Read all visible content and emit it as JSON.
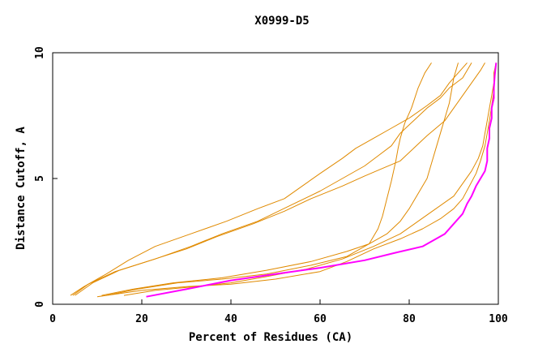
{
  "chart_data": {
    "type": "line",
    "title": "X0999-D5",
    "xlabel": "Percent of Residues (CA)",
    "ylabel": "Distance Cutoff, A",
    "xlim": [
      0,
      100
    ],
    "ylim": [
      0,
      10
    ],
    "x_ticks": [
      0,
      20,
      40,
      60,
      80,
      100
    ],
    "y_ticks": [
      0,
      5,
      10
    ],
    "grid": false,
    "legend": "none",
    "colors": {
      "series": "#e08a00",
      "highlight": "#ff00ff",
      "axes": "#000000"
    },
    "series": [
      {
        "highlight": false,
        "points": [
          [
            4.5,
            0.35
          ],
          [
            8,
            0.8
          ],
          [
            14,
            1.3
          ],
          [
            22,
            1.75
          ],
          [
            30,
            2.2
          ],
          [
            37,
            2.7
          ],
          [
            45,
            3.2
          ],
          [
            52,
            3.7
          ],
          [
            58,
            4.2
          ],
          [
            65,
            4.7
          ],
          [
            70,
            5.1
          ],
          [
            74,
            5.4
          ],
          [
            78,
            5.7
          ],
          [
            81,
            6.2
          ],
          [
            84,
            6.7
          ],
          [
            88,
            7.3
          ],
          [
            90,
            7.8
          ],
          [
            92,
            8.3
          ],
          [
            94,
            8.8
          ],
          [
            96,
            9.3
          ],
          [
            97,
            9.6
          ]
        ]
      },
      {
        "highlight": false,
        "points": [
          [
            5,
            0.35
          ],
          [
            9,
            0.85
          ],
          [
            15,
            1.35
          ],
          [
            23,
            1.8
          ],
          [
            31,
            2.3
          ],
          [
            38,
            2.8
          ],
          [
            46,
            3.3
          ],
          [
            53,
            3.9
          ],
          [
            60,
            4.5
          ],
          [
            65,
            5.0
          ],
          [
            70,
            5.5
          ],
          [
            73,
            5.9
          ],
          [
            76,
            6.3
          ],
          [
            78,
            6.8
          ],
          [
            81,
            7.3
          ],
          [
            84,
            7.8
          ],
          [
            87,
            8.2
          ],
          [
            89,
            8.6
          ],
          [
            92,
            9.0
          ],
          [
            94,
            9.6
          ]
        ]
      },
      {
        "highlight": false,
        "points": [
          [
            4,
            0.35
          ],
          [
            7,
            0.7
          ],
          [
            12,
            1.2
          ],
          [
            17,
            1.75
          ],
          [
            23,
            2.3
          ],
          [
            31,
            2.8
          ],
          [
            39,
            3.3
          ],
          [
            46,
            3.8
          ],
          [
            52,
            4.2
          ],
          [
            56,
            4.7
          ],
          [
            60,
            5.2
          ],
          [
            65,
            5.8
          ],
          [
            68,
            6.2
          ],
          [
            72,
            6.6
          ],
          [
            76,
            7.0
          ],
          [
            80,
            7.4
          ],
          [
            84,
            7.9
          ],
          [
            87,
            8.3
          ],
          [
            89,
            8.8
          ],
          [
            91,
            9.2
          ],
          [
            93,
            9.6
          ]
        ]
      },
      {
        "highlight": false,
        "points": [
          [
            11,
            0.35
          ],
          [
            18,
            0.6
          ],
          [
            27,
            0.85
          ],
          [
            38,
            1.05
          ],
          [
            48,
            1.35
          ],
          [
            58,
            1.7
          ],
          [
            66,
            2.1
          ],
          [
            71,
            2.4
          ],
          [
            73,
            3.0
          ],
          [
            74,
            3.5
          ],
          [
            75,
            4.2
          ],
          [
            76,
            4.9
          ],
          [
            77,
            5.7
          ],
          [
            77.5,
            6.2
          ],
          [
            78,
            6.6
          ],
          [
            79,
            7.2
          ],
          [
            80.5,
            7.8
          ],
          [
            82,
            8.6
          ],
          [
            83.5,
            9.2
          ],
          [
            85,
            9.6
          ]
        ]
      },
      {
        "highlight": false,
        "points": [
          [
            12,
            0.35
          ],
          [
            19,
            0.6
          ],
          [
            28,
            0.85
          ],
          [
            38,
            1.0
          ],
          [
            48,
            1.2
          ],
          [
            58,
            1.55
          ],
          [
            66,
            1.9
          ],
          [
            70,
            2.3
          ],
          [
            75,
            2.8
          ],
          [
            78,
            3.3
          ],
          [
            80,
            3.8
          ],
          [
            82,
            4.4
          ],
          [
            84,
            5.0
          ],
          [
            85,
            5.6
          ],
          [
            86,
            6.2
          ],
          [
            87,
            6.8
          ],
          [
            88,
            7.4
          ],
          [
            89,
            8.0
          ],
          [
            89.5,
            8.5
          ],
          [
            90,
            9.0
          ],
          [
            91,
            9.6
          ]
        ]
      },
      {
        "highlight": false,
        "points": [
          [
            16,
            0.35
          ],
          [
            23,
            0.55
          ],
          [
            32,
            0.7
          ],
          [
            40,
            0.85
          ],
          [
            48,
            1.1
          ],
          [
            57,
            1.4
          ],
          [
            65,
            1.8
          ],
          [
            72,
            2.3
          ],
          [
            78,
            2.8
          ],
          [
            82,
            3.3
          ],
          [
            86,
            3.8
          ],
          [
            90,
            4.3
          ],
          [
            92,
            4.8
          ],
          [
            94,
            5.3
          ],
          [
            95.5,
            5.8
          ],
          [
            96.5,
            6.3
          ],
          [
            97,
            6.8
          ],
          [
            97.5,
            7.3
          ],
          [
            98,
            7.8
          ],
          [
            98.5,
            8.3
          ],
          [
            99,
            8.8
          ],
          [
            99,
            9.2
          ],
          [
            99.5,
            9.6
          ]
        ]
      },
      {
        "highlight": false,
        "points": [
          [
            10,
            0.3
          ],
          [
            20,
            0.55
          ],
          [
            30,
            0.7
          ],
          [
            40,
            0.8
          ],
          [
            50,
            1.0
          ],
          [
            60,
            1.3
          ],
          [
            66,
            1.7
          ],
          [
            72,
            2.2
          ],
          [
            78,
            2.6
          ],
          [
            83,
            3.0
          ],
          [
            87,
            3.4
          ],
          [
            90,
            3.8
          ],
          [
            92,
            4.2
          ],
          [
            93.5,
            4.7
          ],
          [
            95,
            5.2
          ],
          [
            96,
            5.7
          ],
          [
            97,
            6.3
          ],
          [
            97.5,
            6.8
          ],
          [
            98,
            7.3
          ],
          [
            98.5,
            7.9
          ],
          [
            99,
            8.5
          ],
          [
            99,
            9.0
          ],
          [
            99.5,
            9.6
          ]
        ]
      },
      {
        "highlight": true,
        "points": [
          [
            21,
            0.3
          ],
          [
            30,
            0.6
          ],
          [
            40,
            0.95
          ],
          [
            50,
            1.2
          ],
          [
            60,
            1.45
          ],
          [
            70,
            1.75
          ],
          [
            77,
            2.05
          ],
          [
            83,
            2.3
          ],
          [
            88,
            2.8
          ],
          [
            90,
            3.2
          ],
          [
            92,
            3.6
          ],
          [
            93,
            4.0
          ],
          [
            94,
            4.3
          ],
          [
            95,
            4.7
          ],
          [
            96,
            5.0
          ],
          [
            97,
            5.3
          ],
          [
            97.5,
            5.7
          ],
          [
            97.5,
            6.2
          ],
          [
            98,
            6.6
          ],
          [
            98,
            7.0
          ],
          [
            98.5,
            7.4
          ],
          [
            98.5,
            7.8
          ],
          [
            99,
            8.2
          ],
          [
            99,
            8.6
          ],
          [
            99.2,
            9.1
          ],
          [
            99.5,
            9.6
          ]
        ]
      }
    ]
  }
}
